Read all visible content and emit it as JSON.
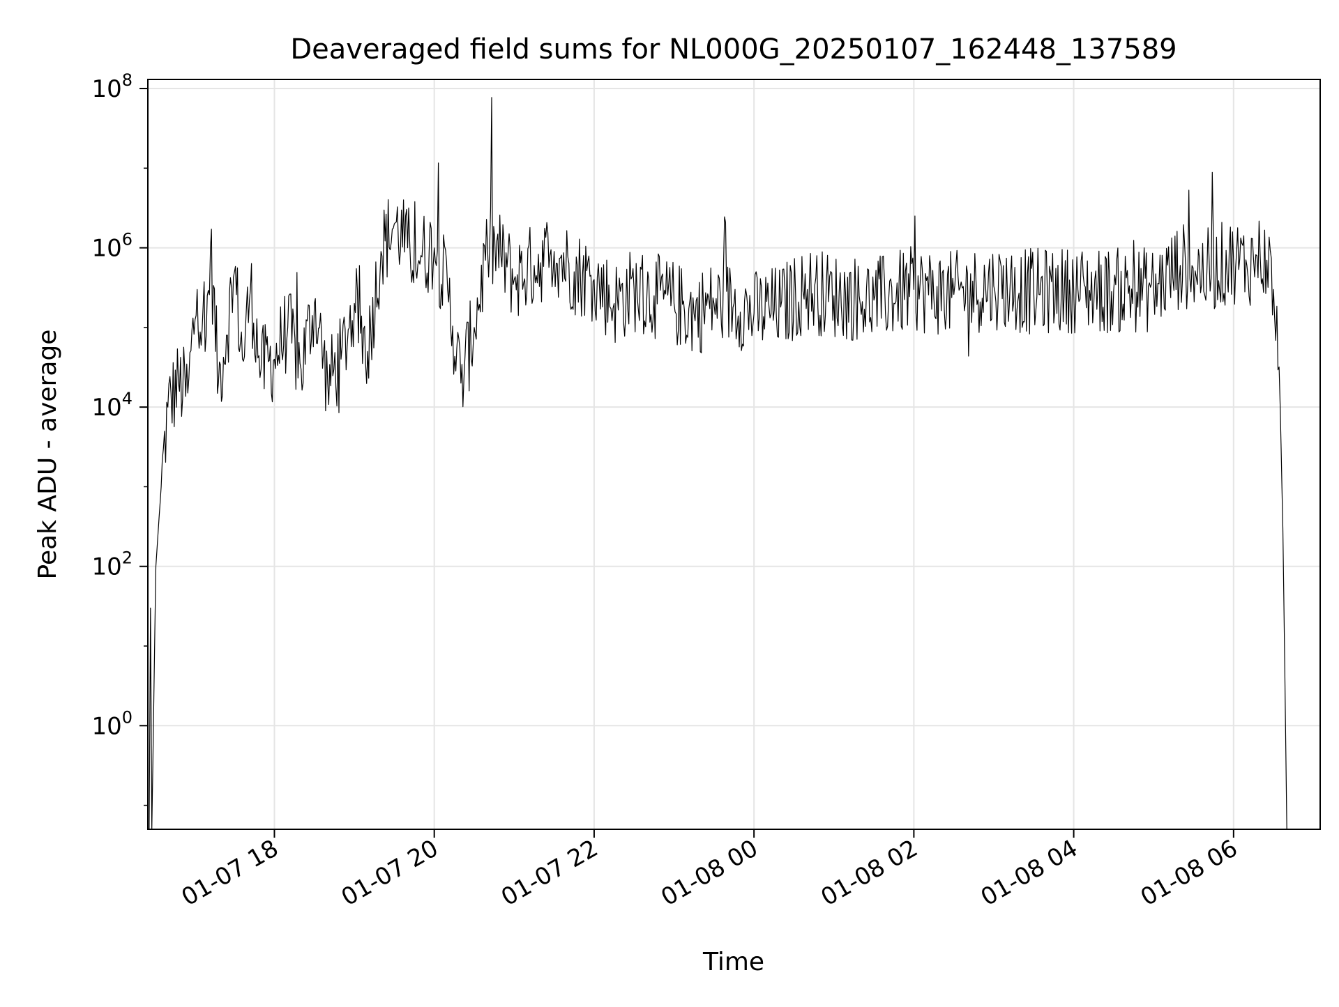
{
  "chart_data": {
    "type": "line",
    "title": "Deaveraged field sums for NL000G_20250107_162448_137589",
    "xlabel": "Time",
    "ylabel": "Peak ADU - average",
    "x_ticks": [
      {
        "value": "2025-01-07 18:00",
        "label": "01-07 18"
      },
      {
        "value": "2025-01-07 20:00",
        "label": "01-07 20"
      },
      {
        "value": "2025-01-07 22:00",
        "label": "01-07 22"
      },
      {
        "value": "2025-01-08 00:00",
        "label": "01-08 00"
      },
      {
        "value": "2025-01-08 02:00",
        "label": "01-08 02"
      },
      {
        "value": "2025-01-08 04:00",
        "label": "01-08 04"
      },
      {
        "value": "2025-01-08 06:00",
        "label": "01-08 06"
      }
    ],
    "y_ticks": [
      {
        "value": 1,
        "base": "10",
        "exp": "0"
      },
      {
        "value": 100,
        "base": "10",
        "exp": "2"
      },
      {
        "value": 10000,
        "base": "10",
        "exp": "4"
      },
      {
        "value": 1000000,
        "base": "10",
        "exp": "6"
      },
      {
        "value": 100000000,
        "base": "10",
        "exp": "8"
      }
    ],
    "yscale": "log",
    "xlim": [
      "2025-01-07 16:25",
      "2025-01-08 07:05"
    ],
    "ylim": [
      0.05,
      130000000
    ],
    "grid": true,
    "line_color": "#000000",
    "series": [
      {
        "x": [
          "2025-01-07 16:26",
          "2025-01-07 16:27",
          "2025-01-07 16:28",
          "2025-01-07 16:31",
          "2025-01-07 16:35",
          "2025-01-07 16:40",
          "2025-01-07 16:48",
          "2025-01-07 16:55",
          "2025-01-07 17:02",
          "2025-01-07 17:08",
          "2025-01-07 17:12",
          "2025-01-07 17:18",
          "2025-01-07 17:24",
          "2025-01-07 17:30",
          "2025-01-07 17:36",
          "2025-01-07 17:42",
          "2025-01-07 17:50",
          "2025-01-07 18:00",
          "2025-01-07 18:10",
          "2025-01-07 18:20",
          "2025-01-07 18:30",
          "2025-01-07 18:40",
          "2025-01-07 18:50",
          "2025-01-07 19:00",
          "2025-01-07 19:10",
          "2025-01-07 19:20",
          "2025-01-07 19:30",
          "2025-01-07 19:40",
          "2025-01-07 19:50",
          "2025-01-07 20:00",
          "2025-01-07 20:10",
          "2025-01-07 20:20",
          "2025-01-07 20:30",
          "2025-01-07 20:40",
          "2025-01-07 20:50",
          "2025-01-07 21:00",
          "2025-01-07 21:15",
          "2025-01-07 21:30",
          "2025-01-07 21:45",
          "2025-01-07 22:00",
          "2025-01-07 22:15",
          "2025-01-07 22:30",
          "2025-01-07 22:45",
          "2025-01-07 23:00",
          "2025-01-07 23:15",
          "2025-01-07 23:30",
          "2025-01-07 23:45",
          "2025-01-08 00:00",
          "2025-01-08 00:20",
          "2025-01-08 00:40",
          "2025-01-08 01:00",
          "2025-01-08 01:30",
          "2025-01-08 02:00",
          "2025-01-08 02:30",
          "2025-01-08 03:00",
          "2025-01-08 03:30",
          "2025-01-08 04:00",
          "2025-01-08 04:30",
          "2025-01-08 05:00",
          "2025-01-08 05:20",
          "2025-01-08 05:40",
          "2025-01-08 06:00",
          "2025-01-08 06:10",
          "2025-01-08 06:15",
          "2025-01-08 06:20",
          "2025-01-08 06:25",
          "2025-01-08 06:30",
          "2025-01-08 06:35",
          "2025-01-08 06:37",
          "2025-01-08 06:39",
          "2025-01-08 06:40"
        ],
        "y": [
          0.05,
          30,
          0.05,
          100,
          1000,
          10000,
          20000,
          15000,
          300000,
          50000,
          1000000,
          20000,
          80000,
          500000,
          40000,
          300000,
          30000,
          40000,
          100000,
          30000,
          200000,
          20000,
          40000,
          200000,
          50000,
          900000,
          2000000,
          1000000,
          800000,
          1000000,
          300000,
          20000,
          100000,
          1000000,
          800000,
          400000,
          600000,
          900000,
          500000,
          400000,
          200000,
          300000,
          250000,
          200000,
          150000,
          200000,
          200000,
          150000,
          180000,
          300000,
          250000,
          220000,
          300000,
          260000,
          330000,
          280000,
          300000,
          290000,
          300000,
          600000,
          500000,
          700000,
          600000,
          700000,
          800000,
          700000,
          300000,
          10000,
          300,
          1,
          0.05
        ]
      }
    ]
  }
}
